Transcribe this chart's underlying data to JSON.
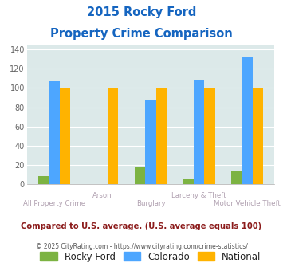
{
  "title_line1": "2015 Rocky Ford",
  "title_line2": "Property Crime Comparison",
  "categories": [
    "All Property Crime",
    "Arson",
    "Burglary",
    "Larceny & Theft",
    "Motor Vehicle Theft"
  ],
  "rocky_ford": [
    8,
    0,
    17,
    5,
    13
  ],
  "colorado": [
    107,
    0,
    87,
    109,
    133
  ],
  "national": [
    100,
    100,
    100,
    100,
    100
  ],
  "rocky_ford_color": "#7cb342",
  "colorado_color": "#4da6ff",
  "national_color": "#ffb300",
  "bg_color": "#dce9e9",
  "ylim": [
    0,
    145
  ],
  "yticks": [
    0,
    20,
    40,
    60,
    80,
    100,
    120,
    140
  ],
  "xlabel_color": "#b0a0b0",
  "title_color": "#1565c0",
  "footer_note": "Compared to U.S. average. (U.S. average equals 100)",
  "footer_copyright_plain": "© 2025 CityRating.com - ",
  "footer_copyright_link": "https://www.cityrating.com/crime-statistics/",
  "footer_note_color": "#8b1a1a",
  "footer_copyright_color": "#555555",
  "footer_link_color": "#4488cc",
  "bar_width": 0.22,
  "legend_text_color": "#222222"
}
